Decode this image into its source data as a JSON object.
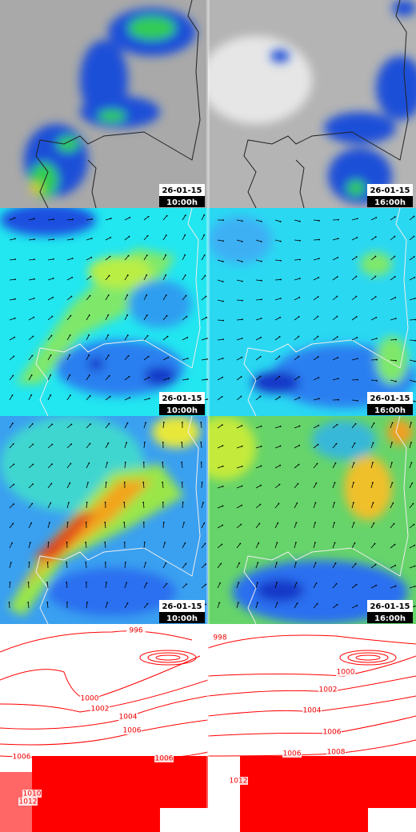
{
  "panels": [
    {
      "date": "26-01-15",
      "time": "10:00h"
    },
    {
      "date": "26-01-15",
      "time": "16:00h"
    },
    {
      "date": "26-01-15",
      "time": "10:00h"
    },
    {
      "date": "26-01-15",
      "time": "16:00h"
    },
    {
      "date": "26-01-15",
      "time": "10:00h"
    },
    {
      "date": "26-01-15",
      "time": "16:00h"
    }
  ],
  "isobar_panels": [
    {
      "labels": [
        "996",
        "1000",
        "1002",
        "1004",
        "1006",
        "1006",
        "1006",
        "1010",
        "1012"
      ]
    },
    {
      "labels": [
        "998",
        "1000",
        "1002",
        "1004",
        "1006",
        "1006",
        "1008",
        "1012"
      ]
    }
  ]
}
